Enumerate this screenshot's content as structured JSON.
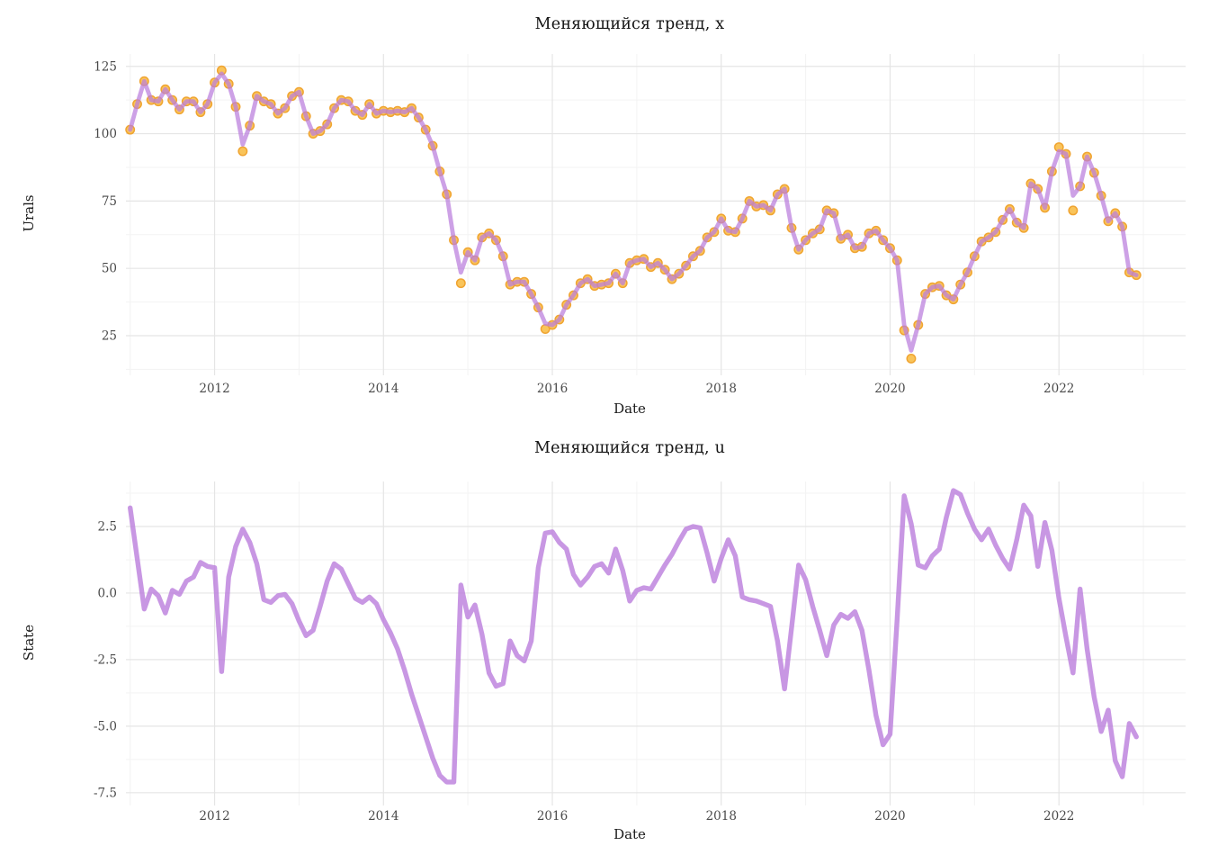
{
  "figure": {
    "background": "#ffffff",
    "grid_major_color": "#e5e5e5",
    "grid_minor_color": "#f3f3f3",
    "tick_text_color": "#4a4a4a",
    "title_text_color": "#141414"
  },
  "chart_data": [
    {
      "type": "line",
      "title": "Меняющийся тренд, x",
      "xlabel": "Date",
      "ylabel": "Urals",
      "x_start_year": 2011,
      "frequency": "monthly",
      "n_points": 144,
      "x_tick_years": [
        2012,
        2014,
        2016,
        2018,
        2020,
        2022
      ],
      "x_tick_labels": [
        "2012",
        "2014",
        "2016",
        "2018",
        "2020",
        "2022"
      ],
      "y_ticks": [
        125,
        100,
        75,
        50,
        25
      ],
      "y_tick_labels": [
        "125",
        "100",
        "75",
        "50",
        "25"
      ],
      "y_tick_step": 25,
      "xlim": [
        2010.95,
        2023.5
      ],
      "ylim": [
        10.3,
        129.6
      ],
      "grid": true,
      "legend": "none",
      "series": [
        {
          "name": "Urals monthly price (points)",
          "style": "points",
          "color": "#F9C45A",
          "stroke": "#F0A431",
          "radius": 4.7,
          "values": [
            101.5,
            111,
            119.5,
            112.5,
            112,
            116.5,
            112.5,
            109,
            112,
            112,
            108,
            111,
            119,
            123.5,
            118.5,
            110,
            93.5,
            103,
            114,
            112,
            111,
            107.5,
            109.5,
            114,
            115.5,
            106.5,
            100,
            101,
            103.5,
            109.5,
            112.5,
            112,
            108.5,
            107,
            111,
            107.5,
            108.5,
            108,
            108.5,
            108,
            109.5,
            106,
            101.5,
            95.5,
            86,
            77.5,
            60.5,
            44.5,
            56,
            53,
            61.5,
            63,
            60.5,
            54.5,
            44,
            45,
            45,
            40.5,
            35.5,
            27.5,
            29,
            31,
            36.5,
            40,
            44.5,
            46,
            43.5,
            44,
            44.5,
            48,
            44.5,
            52,
            53,
            53.5,
            50.5,
            52,
            49.5,
            46,
            48,
            51,
            54.5,
            56.5,
            61.5,
            63.5,
            68.5,
            64,
            63.5,
            68.5,
            75,
            73,
            73.5,
            71.5,
            77.5,
            79.5,
            65,
            57,
            60.5,
            63,
            64.5,
            71.5,
            70.5,
            61,
            62.5,
            57.5,
            58,
            63,
            64,
            60.5,
            57.5,
            53,
            27,
            16.5,
            29,
            40.5,
            43,
            43.5,
            40,
            38.5,
            44,
            48.5,
            54.5,
            60,
            61.5,
            63.5,
            68,
            72,
            67,
            65,
            81.5,
            79.5,
            72.5,
            86,
            95,
            92.5,
            71.5,
            80.5,
            91.5,
            85.5,
            77,
            67.5,
            70.5,
            65.5,
            48.5,
            47.5
          ]
        },
        {
          "name": "fitted changing trend (line)",
          "style": "line",
          "color": "#BA7DDC",
          "opacity": 0.72,
          "width": 4.8,
          "values_from_series": 0,
          "overrides": {
            "13": 122.3,
            "16": 96,
            "47": 48.5,
            "59": 29.5,
            "110": 29,
            "111": 19.5,
            "132": 93.5,
            "134": 77
          }
        }
      ]
    },
    {
      "type": "line",
      "title": "Меняющийся тренд, u",
      "xlabel": "Date",
      "ylabel": "State",
      "x_start_year": 2011,
      "frequency": "monthly",
      "n_points": 144,
      "x_tick_years": [
        2012,
        2014,
        2016,
        2018,
        2020,
        2022
      ],
      "x_tick_labels": [
        "2012",
        "2014",
        "2016",
        "2018",
        "2020",
        "2022"
      ],
      "y_ticks": [
        2.5,
        0,
        -2.5,
        -5,
        -7.5
      ],
      "y_tick_labels": [
        "2.5",
        "0.0",
        "-2.5",
        "-5.0",
        "-7.5"
      ],
      "y_tick_step": 2.5,
      "xlim": [
        2010.95,
        2023.5
      ],
      "ylim": [
        -7.98,
        4.19
      ],
      "grid": true,
      "legend": "none",
      "series": [
        {
          "name": "trend state u (line)",
          "style": "line",
          "color": "#BA7DDC",
          "opacity": 0.8,
          "width": 5.4,
          "values": [
            3.2,
            1.3,
            -0.6,
            0.15,
            -0.1,
            -0.75,
            0.1,
            -0.05,
            0.45,
            0.6,
            1.15,
            1.0,
            0.95,
            -2.95,
            0.6,
            1.75,
            2.4,
            1.9,
            1.1,
            -0.25,
            -0.35,
            -0.1,
            -0.05,
            -0.4,
            -1.05,
            -1.6,
            -1.4,
            -0.5,
            0.45,
            1.1,
            0.9,
            0.35,
            -0.2,
            -0.35,
            -0.15,
            -0.4,
            -1.0,
            -1.5,
            -2.1,
            -2.9,
            -3.8,
            -4.6,
            -5.4,
            -6.2,
            -6.85,
            -7.1,
            -7.1,
            0.3,
            -0.9,
            -0.45,
            -1.55,
            -3.0,
            -3.5,
            -3.4,
            -1.8,
            -2.35,
            -2.55,
            -1.8,
            0.95,
            2.25,
            2.3,
            1.9,
            1.65,
            0.7,
            0.3,
            0.6,
            1.0,
            1.1,
            0.75,
            1.65,
            0.85,
            -0.3,
            0.1,
            0.2,
            0.15,
            0.6,
            1.05,
            1.45,
            1.95,
            2.4,
            2.5,
            2.45,
            1.5,
            0.45,
            1.3,
            2.0,
            1.4,
            -0.15,
            -0.25,
            -0.3,
            -0.4,
            -0.5,
            -1.8,
            -3.6,
            -1.3,
            1.05,
            0.5,
            -0.5,
            -1.4,
            -2.35,
            -1.2,
            -0.8,
            -0.95,
            -0.7,
            -1.4,
            -2.9,
            -4.6,
            -5.7,
            -5.3,
            -1.0,
            3.65,
            2.6,
            1.05,
            0.95,
            1.4,
            1.65,
            2.85,
            3.85,
            3.7,
            3.0,
            2.4,
            2.0,
            2.4,
            1.8,
            1.3,
            0.9,
            2.0,
            3.3,
            2.9,
            1.0,
            2.65,
            1.6,
            -0.2,
            -1.65,
            -3.0,
            0.15,
            -2.1,
            -3.9,
            -5.2,
            -4.4,
            -6.3,
            -6.9,
            -4.9,
            -5.4
          ]
        }
      ]
    }
  ]
}
